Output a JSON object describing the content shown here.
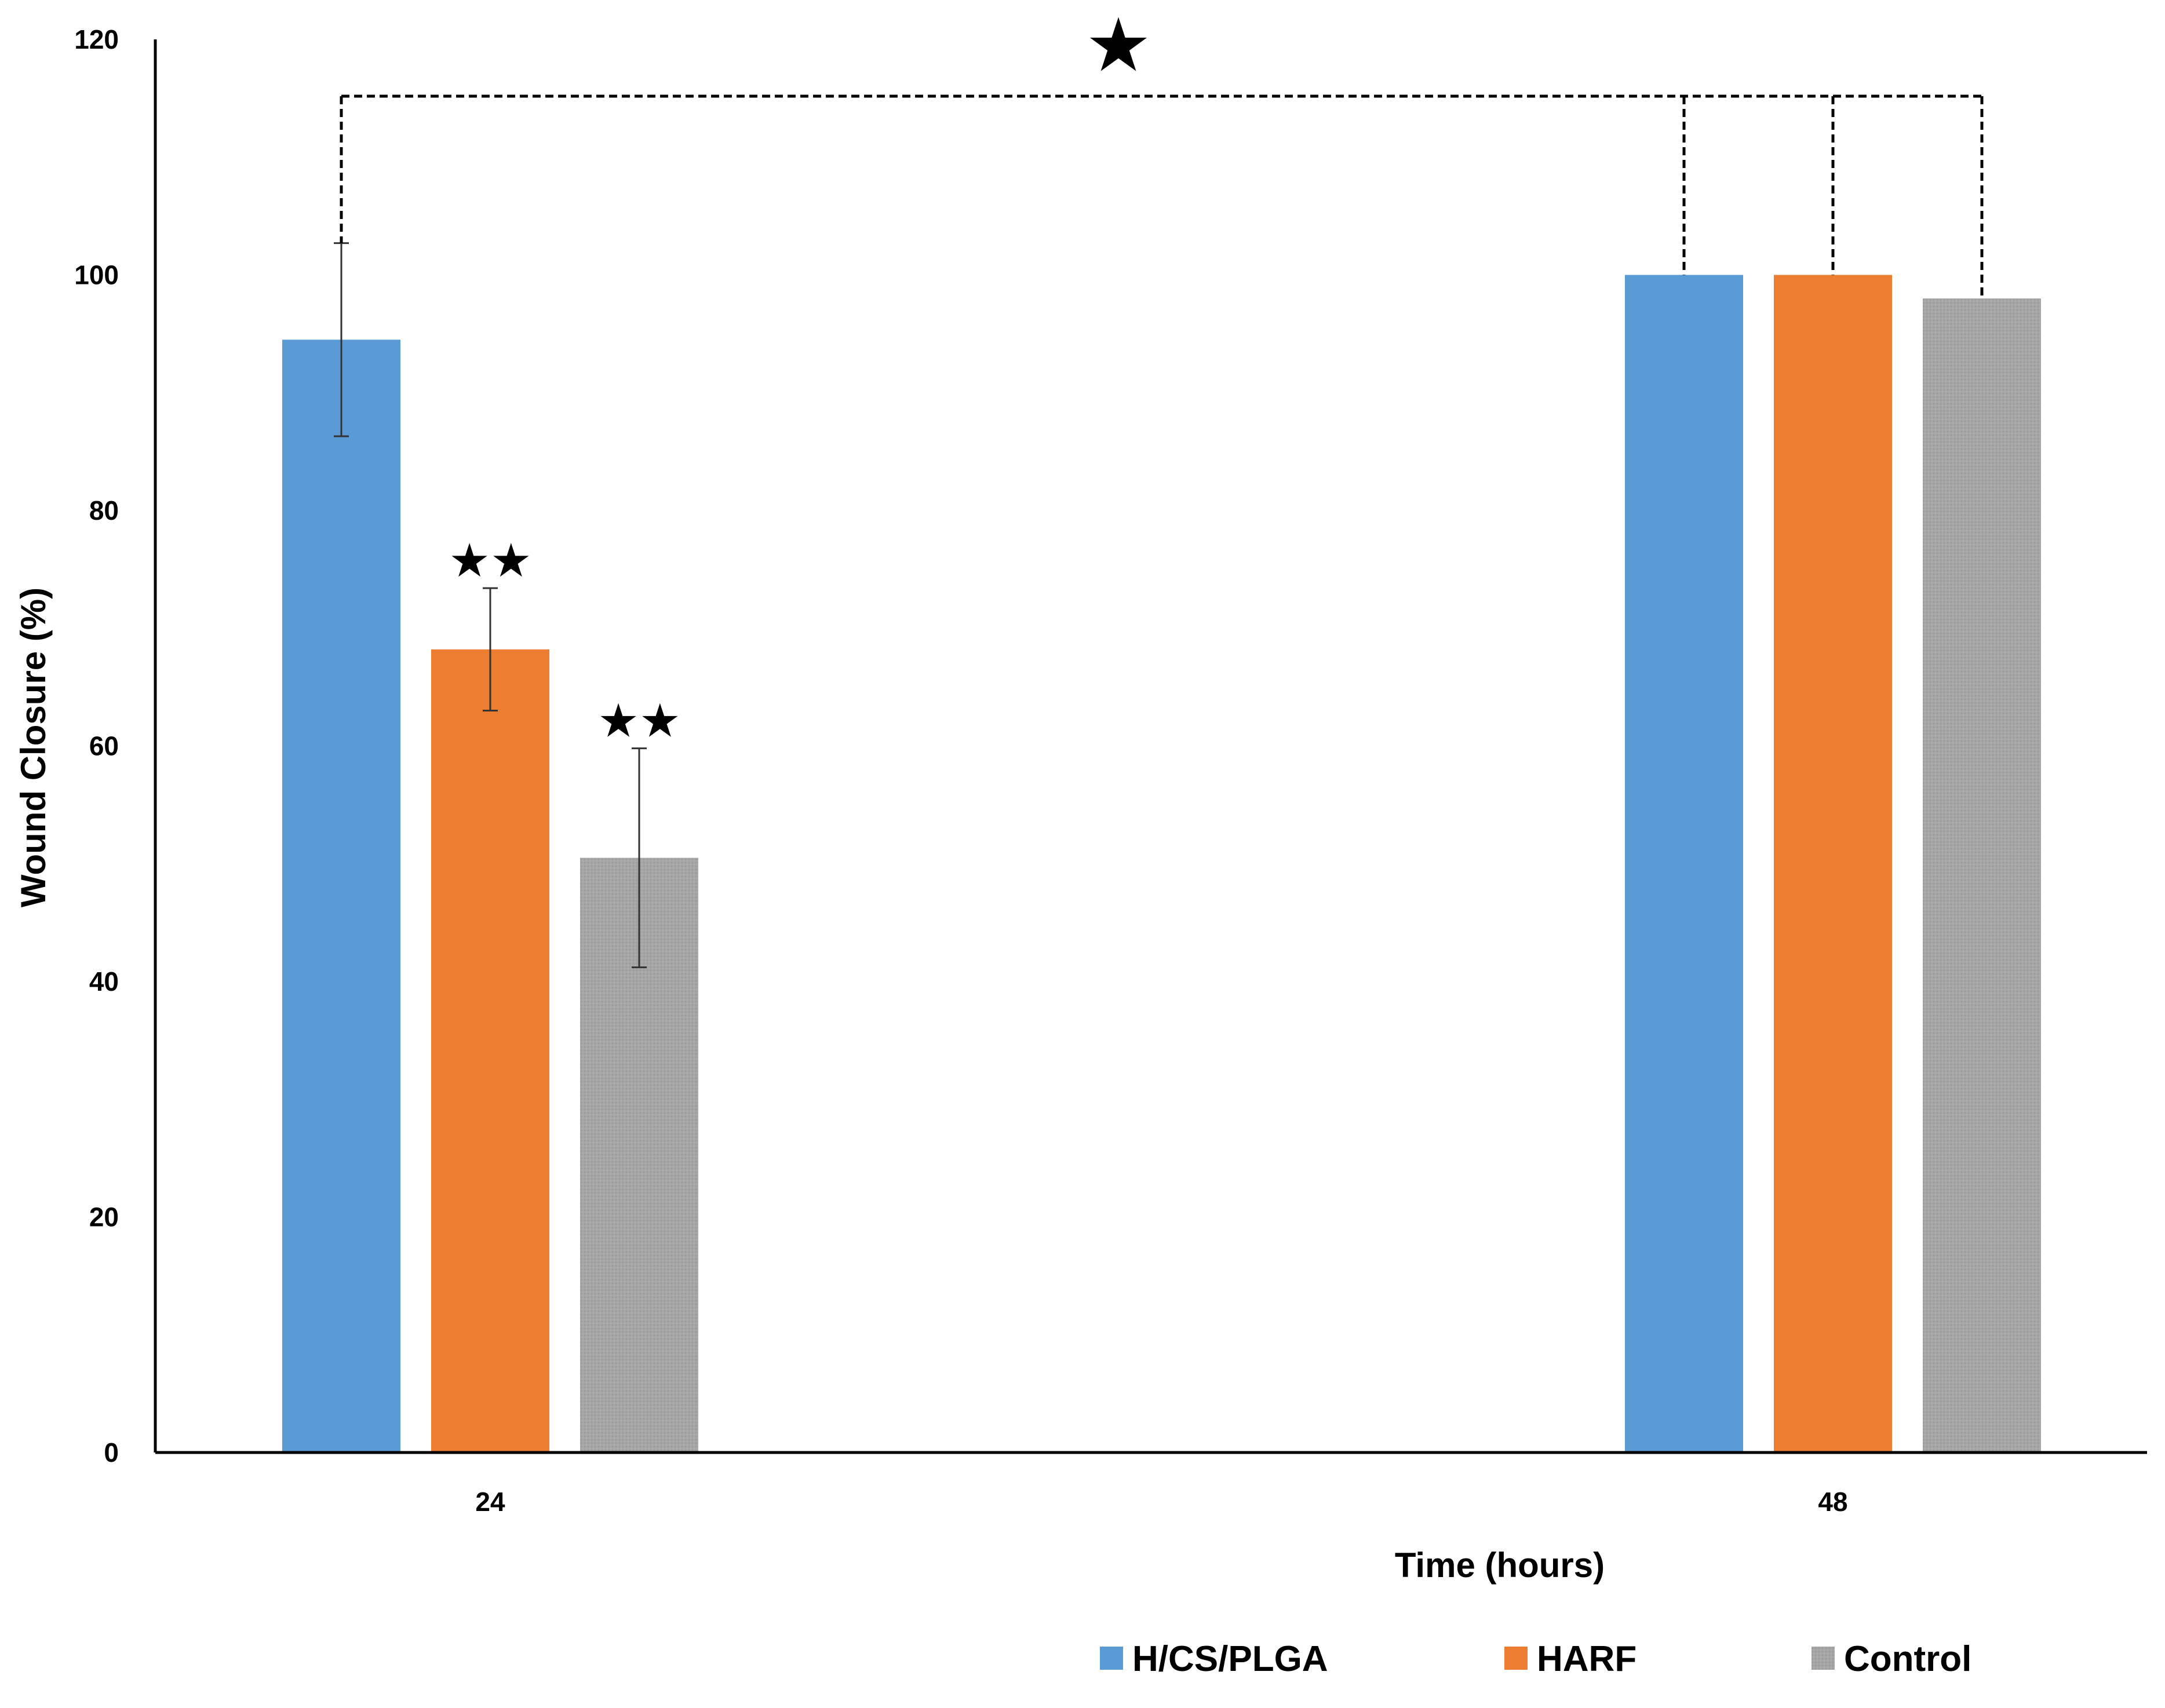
{
  "chart_data": {
    "type": "bar",
    "title": "",
    "xlabel": "Time (hours)",
    "ylabel": "Wound Closure (%)",
    "ylim": [
      0,
      120
    ],
    "yticks": [
      0,
      20,
      40,
      60,
      80,
      100,
      120
    ],
    "categories": [
      "24",
      "48"
    ],
    "series": [
      {
        "name": "H/CS/PLGA",
        "color": "#5B9BD5",
        "values": [
          94.5,
          100
        ],
        "errors": [
          8.2,
          0
        ]
      },
      {
        "name": "HARF",
        "color": "#ED7D31",
        "values": [
          68.2,
          100
        ],
        "errors": [
          5.2,
          0
        ]
      },
      {
        "name": "Control",
        "color": "#A5A5A5",
        "values": [
          50.5,
          98
        ],
        "errors": [
          9.3,
          0
        ]
      }
    ],
    "annotations": {
      "significance_24h": [
        "",
        "★★",
        "★★"
      ],
      "bracket_symbol": "★"
    },
    "legend_position": "bottom-right",
    "grid": false
  }
}
